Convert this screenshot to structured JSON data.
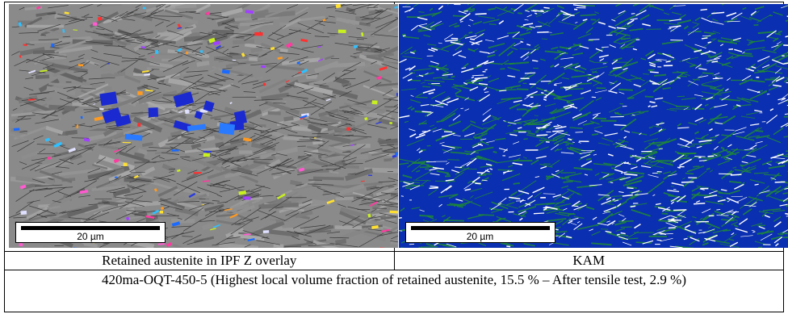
{
  "panels": [
    {
      "caption": "Retained austenite in IPF Z overlay",
      "scale_label": "20 µm",
      "kind": "ipf"
    },
    {
      "caption": "KAM",
      "scale_label": "20 µm",
      "kind": "kam"
    }
  ],
  "figure_caption": "420ma-OQT-450-5 (Highest local volume fraction of retained austenite, 15.5 % – After tensile test, 2.9 %)",
  "colors": {
    "ipf_background": "#8a8a8a",
    "kam_background": "#0a2fb0",
    "kam_low": "#1f8f2f",
    "kam_high": "#ffffff"
  }
}
